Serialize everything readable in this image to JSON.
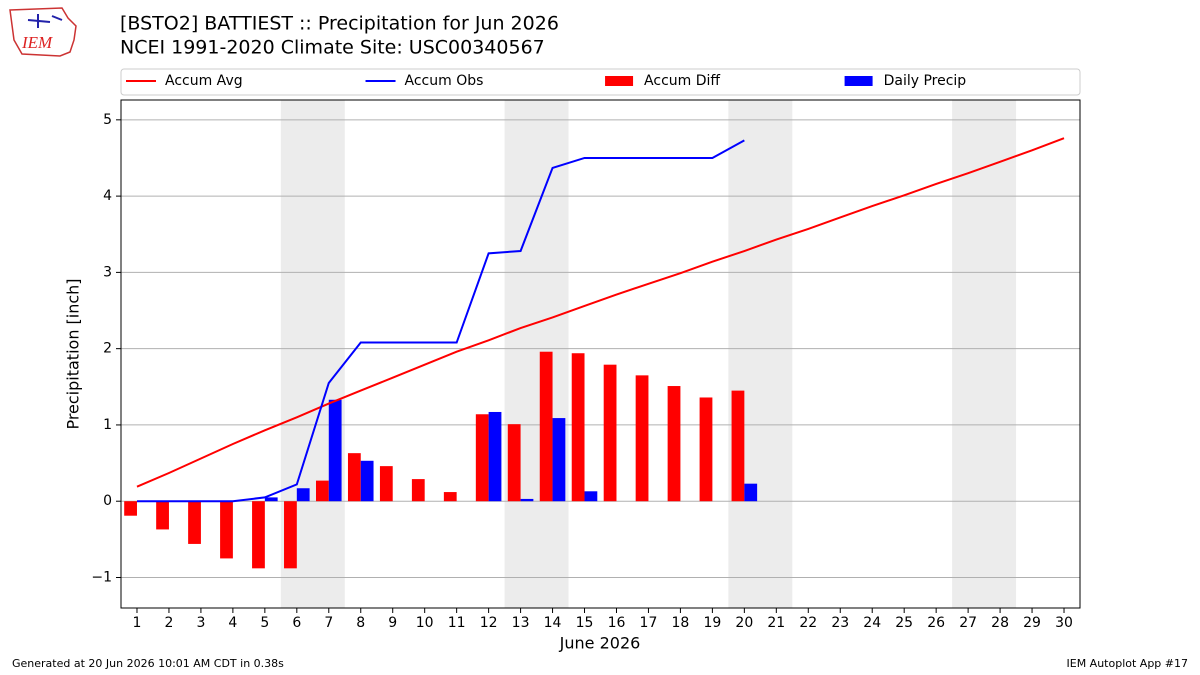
{
  "chart_data": {
    "type": "bar_line",
    "title": "[BSTO2] BATTIEST :: Precipitation for Jun 2026",
    "subtitle": "NCEI 1991-2020 Climate Site: USC00340567",
    "logo_text": "IEM",
    "xlabel": "June 2026",
    "ylabel": "Precipitation [inch]",
    "x": [
      1,
      2,
      3,
      4,
      5,
      6,
      7,
      8,
      9,
      10,
      11,
      12,
      13,
      14,
      15,
      16,
      17,
      18,
      19,
      20,
      21,
      22,
      23,
      24,
      25,
      26,
      27,
      28,
      29,
      30
    ],
    "xlim": [
      0.5,
      30.5
    ],
    "xticks": [
      1,
      2,
      3,
      4,
      5,
      6,
      7,
      8,
      9,
      10,
      11,
      12,
      13,
      14,
      15,
      16,
      17,
      18,
      19,
      20,
      21,
      22,
      23,
      24,
      25,
      26,
      27,
      28,
      29,
      30
    ],
    "ylim": [
      -1.4,
      5.26
    ],
    "yticks": [
      {
        "value": -1,
        "label": "−1"
      },
      0,
      1,
      2,
      3,
      4,
      5
    ],
    "grid": true,
    "shaded_spans": [
      [
        5.5,
        7.5
      ],
      [
        12.5,
        14.5
      ],
      [
        19.5,
        21.5
      ],
      [
        26.5,
        28.5
      ]
    ],
    "series": [
      {
        "name": "Accum Avg",
        "type": "line",
        "color": "#ff0000",
        "values": [
          0.19,
          0.37,
          0.56,
          0.75,
          0.93,
          1.1,
          1.28,
          1.45,
          1.62,
          1.79,
          1.96,
          2.11,
          2.27,
          2.41,
          2.56,
          2.71,
          2.85,
          2.99,
          3.14,
          3.28,
          3.43,
          3.57,
          3.72,
          3.87,
          4.01,
          4.16,
          4.3,
          4.45,
          4.6,
          4.76
        ]
      },
      {
        "name": "Accum Obs",
        "type": "line",
        "color": "#0000ff",
        "values": [
          0,
          0,
          0,
          0,
          0.05,
          0.22,
          1.55,
          2.08,
          2.08,
          2.08,
          2.08,
          3.25,
          3.28,
          4.37,
          4.5,
          4.5,
          4.5,
          4.5,
          4.5,
          4.73,
          null,
          null,
          null,
          null,
          null,
          null,
          null,
          null,
          null,
          null
        ]
      },
      {
        "name": "Accum Diff",
        "type": "bar",
        "color": "#ff0000",
        "values": [
          -0.19,
          -0.37,
          -0.56,
          -0.75,
          -0.88,
          -0.88,
          0.27,
          0.63,
          0.46,
          0.29,
          0.12,
          1.14,
          1.01,
          1.96,
          1.94,
          1.79,
          1.65,
          1.51,
          1.36,
          1.45,
          null,
          null,
          null,
          null,
          null,
          null,
          null,
          null,
          null,
          null
        ]
      },
      {
        "name": "Daily Precip",
        "type": "bar",
        "color": "#0000ff",
        "values": [
          0,
          0,
          0,
          0,
          0.05,
          0.17,
          1.33,
          0.53,
          0,
          0,
          0,
          1.17,
          0.03,
          1.09,
          0.13,
          0,
          0,
          0,
          0,
          0.23,
          null,
          null,
          null,
          null,
          null,
          null,
          null,
          null,
          null,
          null
        ]
      }
    ],
    "footer_left": "Generated at 20 Jun 2026 10:01 AM CDT in 0.38s",
    "footer_right": "IEM Autoplot App #17"
  }
}
